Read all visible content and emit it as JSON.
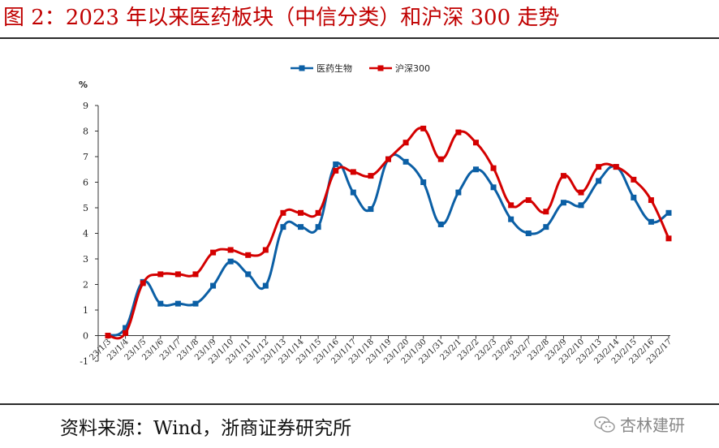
{
  "figure": {
    "title": "图 2：2023 年以来医药板块（中信分类）和沪深 300 走势",
    "source": "资料来源：Wind，浙商证券研究所",
    "watermark": "杏林建研",
    "watermark_icon": "wechat-icon"
  },
  "colors": {
    "title": "#c00000",
    "series_pharma": "#0b5fa5",
    "series_hs300": "#d40000",
    "axis": "#333333"
  },
  "chart_data": {
    "type": "line",
    "title": "",
    "xlabel": "",
    "ylabel": "%",
    "ylim": [
      -1,
      9
    ],
    "yticks": [
      "-1",
      "0",
      "1",
      "2",
      "3",
      "4",
      "5",
      "6",
      "7",
      "8",
      "9"
    ],
    "legend_position": "top-center",
    "grid": false,
    "categories": [
      "23/1/3",
      "23/1/4",
      "23/1/5",
      "23/1/6",
      "23/1/7",
      "23/1/8",
      "23/1/9",
      "23/1/10",
      "23/1/11",
      "23/1/12",
      "23/1/13",
      "23/1/14",
      "23/1/15",
      "23/1/16",
      "23/1/17",
      "23/1/18",
      "23/1/19",
      "23/1/20",
      "23/1/30",
      "23/1/31",
      "23/2/1",
      "23/2/2",
      "23/2/3",
      "23/2/6",
      "23/2/7",
      "23/2/8",
      "23/2/9",
      "23/2/10",
      "23/2/13",
      "23/2/14",
      "23/2/15",
      "23/2/16",
      "23/2/17"
    ],
    "series": [
      {
        "name": "医药生物",
        "values": [
          0,
          0.3,
          2.1,
          1.25,
          1.25,
          1.25,
          1.95,
          2.9,
          2.4,
          1.95,
          4.25,
          4.25,
          4.25,
          6.7,
          5.6,
          4.95,
          6.9,
          6.8,
          6.0,
          4.35,
          5.6,
          6.5,
          5.8,
          4.55,
          4.0,
          4.25,
          5.2,
          5.1,
          6.05,
          6.6,
          5.4,
          4.45,
          4.8
        ]
      },
      {
        "name": "沪深300",
        "values": [
          0,
          0.1,
          2.05,
          2.4,
          2.4,
          2.4,
          3.25,
          3.35,
          3.15,
          3.35,
          4.8,
          4.8,
          4.8,
          6.45,
          6.4,
          6.25,
          6.9,
          7.55,
          8.1,
          6.9,
          7.95,
          7.55,
          6.55,
          5.1,
          5.3,
          4.85,
          6.25,
          5.6,
          6.6,
          6.6,
          6.1,
          5.3,
          3.8
        ]
      }
    ]
  }
}
